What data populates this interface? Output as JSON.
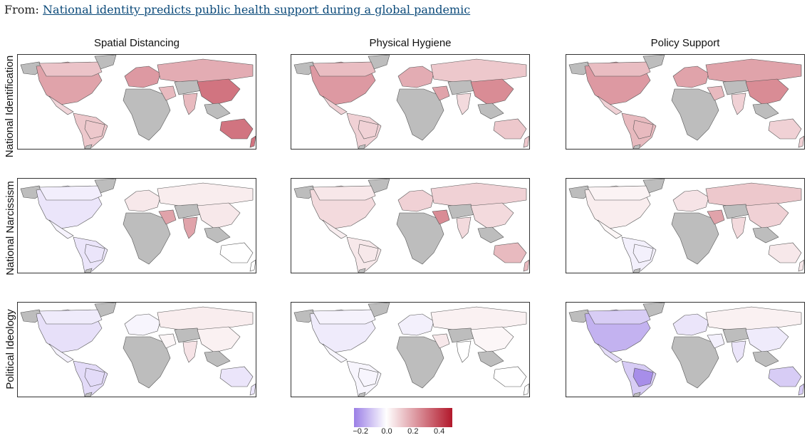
{
  "source": {
    "prefix": "From:",
    "link_text": "National identity predicts public health support during a global pandemic"
  },
  "columns": [
    "Spatial Distancing",
    "Physical Hygiene",
    "Policy Support"
  ],
  "rows": [
    "National Identification",
    "National Narcissism",
    "Political Ideology"
  ],
  "legend": {
    "ticks": [
      "−0.2",
      "0.0",
      "0.2",
      "0.4"
    ],
    "tick_values": [
      -0.2,
      0.0,
      0.2,
      0.4
    ],
    "range": [
      -0.25,
      0.5
    ],
    "colors": {
      "low": "#9b7fe6",
      "mid": "#ffffff",
      "high": "#b2182b",
      "missing": "#bdbdbd"
    }
  },
  "map_values": {
    "National Identification|Spatial Distancing": {
      "na": 0.2,
      "sa": 0.12,
      "eu": 0.22,
      "ru": 0.18,
      "asia": 0.3,
      "aus": 0.3,
      "me": 0.15,
      "india": 0.15
    },
    "National Identification|Physical Hygiene": {
      "na": 0.22,
      "sa": 0.1,
      "eu": 0.18,
      "ru": 0.12,
      "asia": 0.25,
      "aus": 0.12,
      "me": 0.2,
      "india": 0.08
    },
    "National Identification|Policy Support": {
      "na": 0.22,
      "sa": 0.15,
      "eu": 0.2,
      "ru": 0.2,
      "asia": 0.25,
      "aus": 0.1,
      "me": 0.15,
      "india": 0.1
    },
    "National Narcissism|Spatial Distancing": {
      "na": -0.05,
      "sa": -0.05,
      "eu": 0.05,
      "ru": 0.04,
      "asia": 0.05,
      "aus": 0.0,
      "me": 0.2,
      "india": 0.2
    },
    "National Narcissism|Physical Hygiene": {
      "na": 0.08,
      "sa": 0.05,
      "eu": 0.1,
      "ru": 0.1,
      "asia": 0.08,
      "aus": 0.15,
      "me": 0.25,
      "india": 0.08
    },
    "National Narcissism|Policy Support": {
      "na": 0.04,
      "sa": -0.03,
      "eu": 0.06,
      "ru": 0.12,
      "asia": 0.1,
      "aus": 0.05,
      "me": 0.2,
      "india": 0.08
    },
    "Political Ideology|Spatial Distancing": {
      "na": -0.06,
      "sa": -0.07,
      "eu": -0.02,
      "ru": 0.04,
      "asia": 0.03,
      "aus": -0.05,
      "me": 0.02,
      "india": 0.06
    },
    "Political Ideology|Physical Hygiene": {
      "na": -0.04,
      "sa": -0.02,
      "eu": -0.03,
      "ru": 0.03,
      "asia": 0.02,
      "aus": 0.0,
      "me": 0.05,
      "india": 0.0
    },
    "Political Ideology|Policy Support": {
      "na": -0.15,
      "sa": -0.1,
      "eu": -0.05,
      "ru": 0.03,
      "asia": -0.04,
      "aus": -0.1,
      "me": -0.03,
      "india": -0.05,
      "brazil": -0.22
    }
  }
}
